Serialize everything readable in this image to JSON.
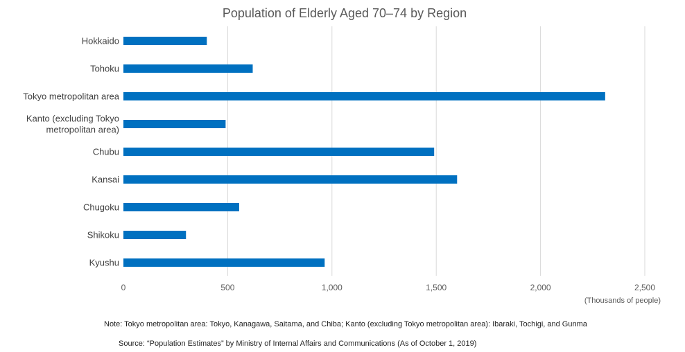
{
  "chart_data": {
    "type": "bar",
    "orientation": "horizontal",
    "title": "Population of Elderly Aged 70–74 by Region",
    "unit_label": "(Thousands of people)",
    "categories": [
      [
        "Hokkaido"
      ],
      [
        "Tohoku"
      ],
      [
        "Tokyo metropolitan area"
      ],
      [
        "Kanto (excluding Tokyo",
        "metropolitan area)"
      ],
      [
        "Chubu"
      ],
      [
        "Kansai"
      ],
      [
        "Chugoku"
      ],
      [
        "Shikoku"
      ],
      [
        "Kyushu"
      ]
    ],
    "values": [
      400,
      620,
      2310,
      490,
      1490,
      1600,
      555,
      300,
      965
    ],
    "xlim": [
      0,
      2500
    ],
    "ticks": [
      0,
      500,
      1000,
      1500,
      2000,
      2500
    ],
    "tick_labels": [
      "0",
      "500",
      "1,000",
      "1,500",
      "2,000",
      "2,500"
    ],
    "bar_color": "#0070C0",
    "grid": true,
    "legend": "none"
  },
  "notes": {
    "note": "Note: Tokyo metropolitan area: Tokyo, Kanagawa, Saitama, and Chiba; Kanto (excluding Tokyo metropolitan area): Ibaraki, Tochigi, and Gunma",
    "source": "Source: “Population Estimates” by Ministry of Internal Affairs and Communications (As of October 1, 2019)"
  }
}
